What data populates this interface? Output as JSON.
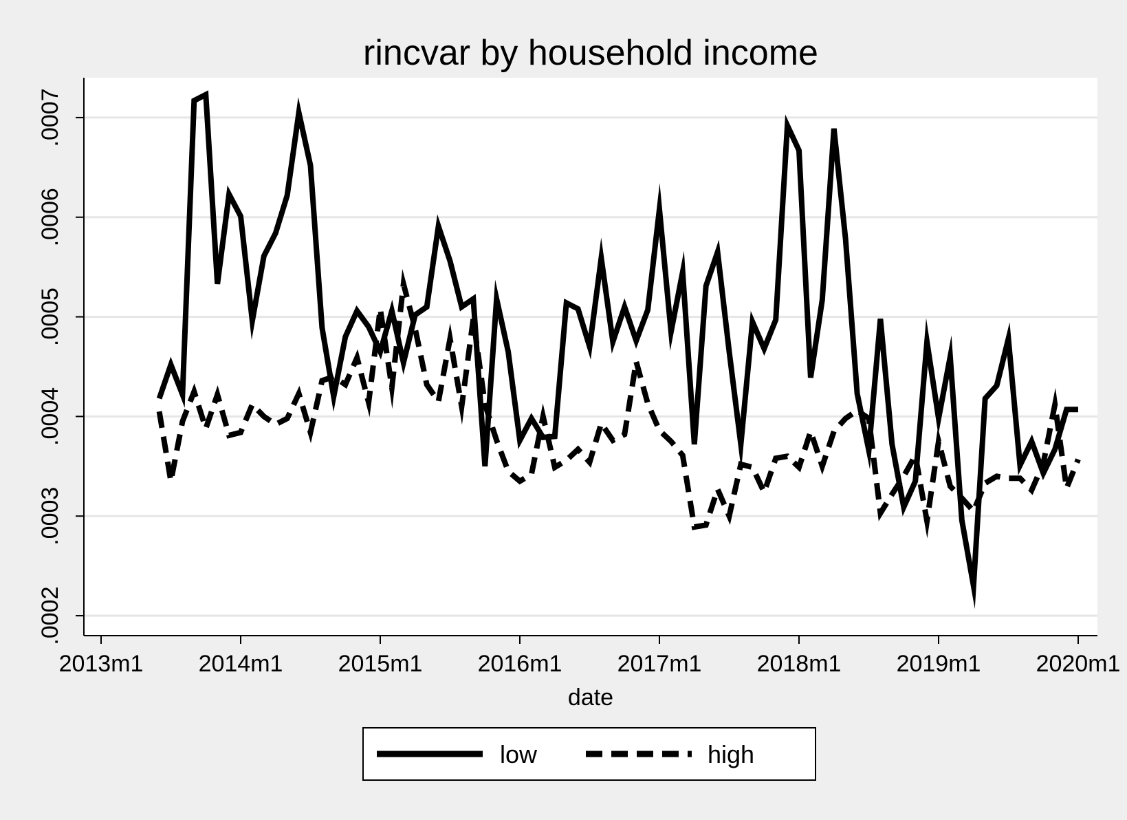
{
  "chart_data": {
    "type": "line",
    "title": "rincvar by household income",
    "xlabel": "date",
    "ylabel": "",
    "x_ticks": [
      "2013m1",
      "2014m1",
      "2015m1",
      "2016m1",
      "2017m1",
      "2018m1",
      "2019m1",
      "2020m1"
    ],
    "y_ticks": [
      ".0002",
      ".0003",
      ".0004",
      ".0005",
      ".0006",
      ".0007"
    ],
    "y_tick_values": [
      0.0002,
      0.0003,
      0.0004,
      0.0005,
      0.0006,
      0.0007
    ],
    "xlim": [
      "2013m1",
      "2020m1"
    ],
    "ylim": [
      0.00018,
      0.00074
    ],
    "grid": true,
    "legend": "bottom",
    "series": [
      {
        "name": "low",
        "style": "solid",
        "color": "#000000",
        "x": [
          "2013m6",
          "2013m7",
          "2013m8",
          "2013m9",
          "2013m10",
          "2013m11",
          "2013m12",
          "2014m1",
          "2014m2",
          "2014m3",
          "2014m4",
          "2014m5",
          "2014m6",
          "2014m7",
          "2014m8",
          "2014m9",
          "2014m10",
          "2014m11",
          "2014m12",
          "2015m1",
          "2015m2",
          "2015m3",
          "2015m4",
          "2015m5",
          "2015m6",
          "2015m7",
          "2015m8",
          "2015m9",
          "2015m10",
          "2015m11",
          "2015m12",
          "2016m1",
          "2016m2",
          "2016m3",
          "2016m4",
          "2016m5",
          "2016m6",
          "2016m7",
          "2016m8",
          "2016m9",
          "2016m10",
          "2016m11",
          "2016m12",
          "2017m1",
          "2017m2",
          "2017m3",
          "2017m4",
          "2017m5",
          "2017m6",
          "2017m7",
          "2017m8",
          "2017m9",
          "2017m10",
          "2017m11",
          "2017m12",
          "2018m1",
          "2018m2",
          "2018m3",
          "2018m4",
          "2018m5",
          "2018m6",
          "2018m7",
          "2018m8",
          "2018m9",
          "2018m10",
          "2018m11",
          "2018m12",
          "2019m1",
          "2019m2",
          "2019m3",
          "2019m4",
          "2019m5",
          "2019m6",
          "2019m7",
          "2019m8",
          "2019m9",
          "2019m10",
          "2019m11",
          "2019m12",
          "2020m1"
        ],
        "values": [
          0.000418,
          0.000452,
          0.000422,
          0.000717,
          0.000723,
          0.000533,
          0.000623,
          0.000601,
          0.000496,
          0.000561,
          0.000584,
          0.000622,
          0.000705,
          0.000652,
          0.000489,
          0.00042,
          0.00048,
          0.000506,
          0.00049,
          0.000465,
          0.000506,
          0.000454,
          0.000502,
          0.00051,
          0.000591,
          0.000556,
          0.00051,
          0.000518,
          0.00035,
          0.000518,
          0.000465,
          0.000376,
          0.000398,
          0.000379,
          0.00038,
          0.000514,
          0.000508,
          0.00047,
          0.000559,
          0.000475,
          0.00051,
          0.000476,
          0.000507,
          0.000608,
          0.000485,
          0.000545,
          0.000372,
          0.000531,
          0.000565,
          0.000465,
          0.000372,
          0.000495,
          0.000468,
          0.000497,
          0.000692,
          0.000667,
          0.000439,
          0.000517,
          0.000689,
          0.000578,
          0.000423,
          0.000366,
          0.000498,
          0.000372,
          0.000309,
          0.000335,
          0.000475,
          0.000398,
          0.00046,
          0.000296,
          0.00023,
          0.000418,
          0.000431,
          0.000478,
          0.000351,
          0.000375,
          0.000343,
          0.000367,
          0.000407,
          0.000407
        ]
      },
      {
        "name": "high",
        "style": "dashed",
        "color": "#000000",
        "x": [
          "2013m6",
          "2013m7",
          "2013m8",
          "2013m9",
          "2013m10",
          "2013m11",
          "2013m12",
          "2014m1",
          "2014m2",
          "2014m3",
          "2014m4",
          "2014m5",
          "2014m6",
          "2014m7",
          "2014m8",
          "2014m9",
          "2014m10",
          "2014m11",
          "2014m12",
          "2015m1",
          "2015m2",
          "2015m3",
          "2015m4",
          "2015m5",
          "2015m6",
          "2015m7",
          "2015m8",
          "2015m9",
          "2015m10",
          "2015m11",
          "2015m12",
          "2016m1",
          "2016m2",
          "2016m3",
          "2016m4",
          "2016m5",
          "2016m6",
          "2016m7",
          "2016m8",
          "2016m9",
          "2016m10",
          "2016m11",
          "2016m12",
          "2017m1",
          "2017m2",
          "2017m3",
          "2017m4",
          "2017m5",
          "2017m6",
          "2017m7",
          "2017m8",
          "2017m9",
          "2017m10",
          "2017m11",
          "2017m12",
          "2018m1",
          "2018m2",
          "2018m3",
          "2018m4",
          "2018m5",
          "2018m6",
          "2018m7",
          "2018m8",
          "2018m9",
          "2018m10",
          "2018m11",
          "2018m12",
          "2019m1",
          "2019m2",
          "2019m3",
          "2019m4",
          "2019m5",
          "2019m6",
          "2019m7",
          "2019m8",
          "2019m9",
          "2019m10",
          "2019m11",
          "2019m12",
          "2020m1"
        ],
        "values": [
          0.000405,
          0.000335,
          0.000395,
          0.000425,
          0.000388,
          0.000422,
          0.000381,
          0.000384,
          0.000412,
          0.0004,
          0.000392,
          0.000398,
          0.000423,
          0.000384,
          0.000436,
          0.00044,
          0.000432,
          0.000459,
          0.000414,
          0.000508,
          0.000429,
          0.000533,
          0.000488,
          0.000432,
          0.000415,
          0.000478,
          0.00041,
          0.000498,
          0.000412,
          0.000376,
          0.000345,
          0.000335,
          0.000342,
          0.0004,
          0.000349,
          0.000356,
          0.000367,
          0.000354,
          0.000393,
          0.000376,
          0.000382,
          0.000455,
          0.000413,
          0.000386,
          0.000375,
          0.000361,
          0.000289,
          0.000291,
          0.000327,
          0.0003,
          0.000352,
          0.000349,
          0.000324,
          0.000358,
          0.00036,
          0.000349,
          0.000385,
          0.00035,
          0.000385,
          0.000398,
          0.000406,
          0.000398,
          0.000303,
          0.000322,
          0.00034,
          0.000361,
          0.000295,
          0.000375,
          0.00033,
          0.000318,
          0.000305,
          0.000333,
          0.00034,
          0.000338,
          0.000338,
          0.000326,
          0.000353,
          0.000412,
          0.000328,
          0.000357
        ]
      }
    ]
  }
}
